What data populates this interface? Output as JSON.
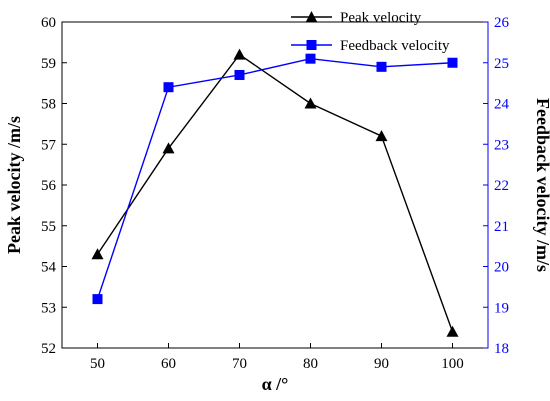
{
  "chart_data": {
    "type": "line",
    "x": [
      50,
      60,
      70,
      80,
      90,
      100
    ],
    "xlabel": "α /°",
    "xlim": [
      45,
      105
    ],
    "xticks": [
      50,
      60,
      70,
      80,
      90,
      100
    ],
    "ylabel": "Peak velocity /m/s",
    "ylim": [
      52,
      60
    ],
    "yticks": [
      52,
      53,
      54,
      55,
      56,
      57,
      58,
      59,
      60
    ],
    "y2label": "Feedback velocity /m/s",
    "y2lim": [
      18,
      26
    ],
    "y2ticks": [
      18,
      19,
      20,
      21,
      22,
      23,
      24,
      25,
      26
    ],
    "grid": false,
    "legend_position": "top-center",
    "series": [
      {
        "name": "Peak velocity",
        "axis": "left",
        "marker": "triangle",
        "color": "#000000",
        "values": [
          54.3,
          56.9,
          59.2,
          58.0,
          57.2,
          52.4
        ]
      },
      {
        "name": "Feedback velocity",
        "axis": "right",
        "marker": "square",
        "color": "#0000ff",
        "values": [
          19.2,
          24.4,
          24.7,
          25.1,
          24.9,
          25.0
        ]
      }
    ]
  }
}
